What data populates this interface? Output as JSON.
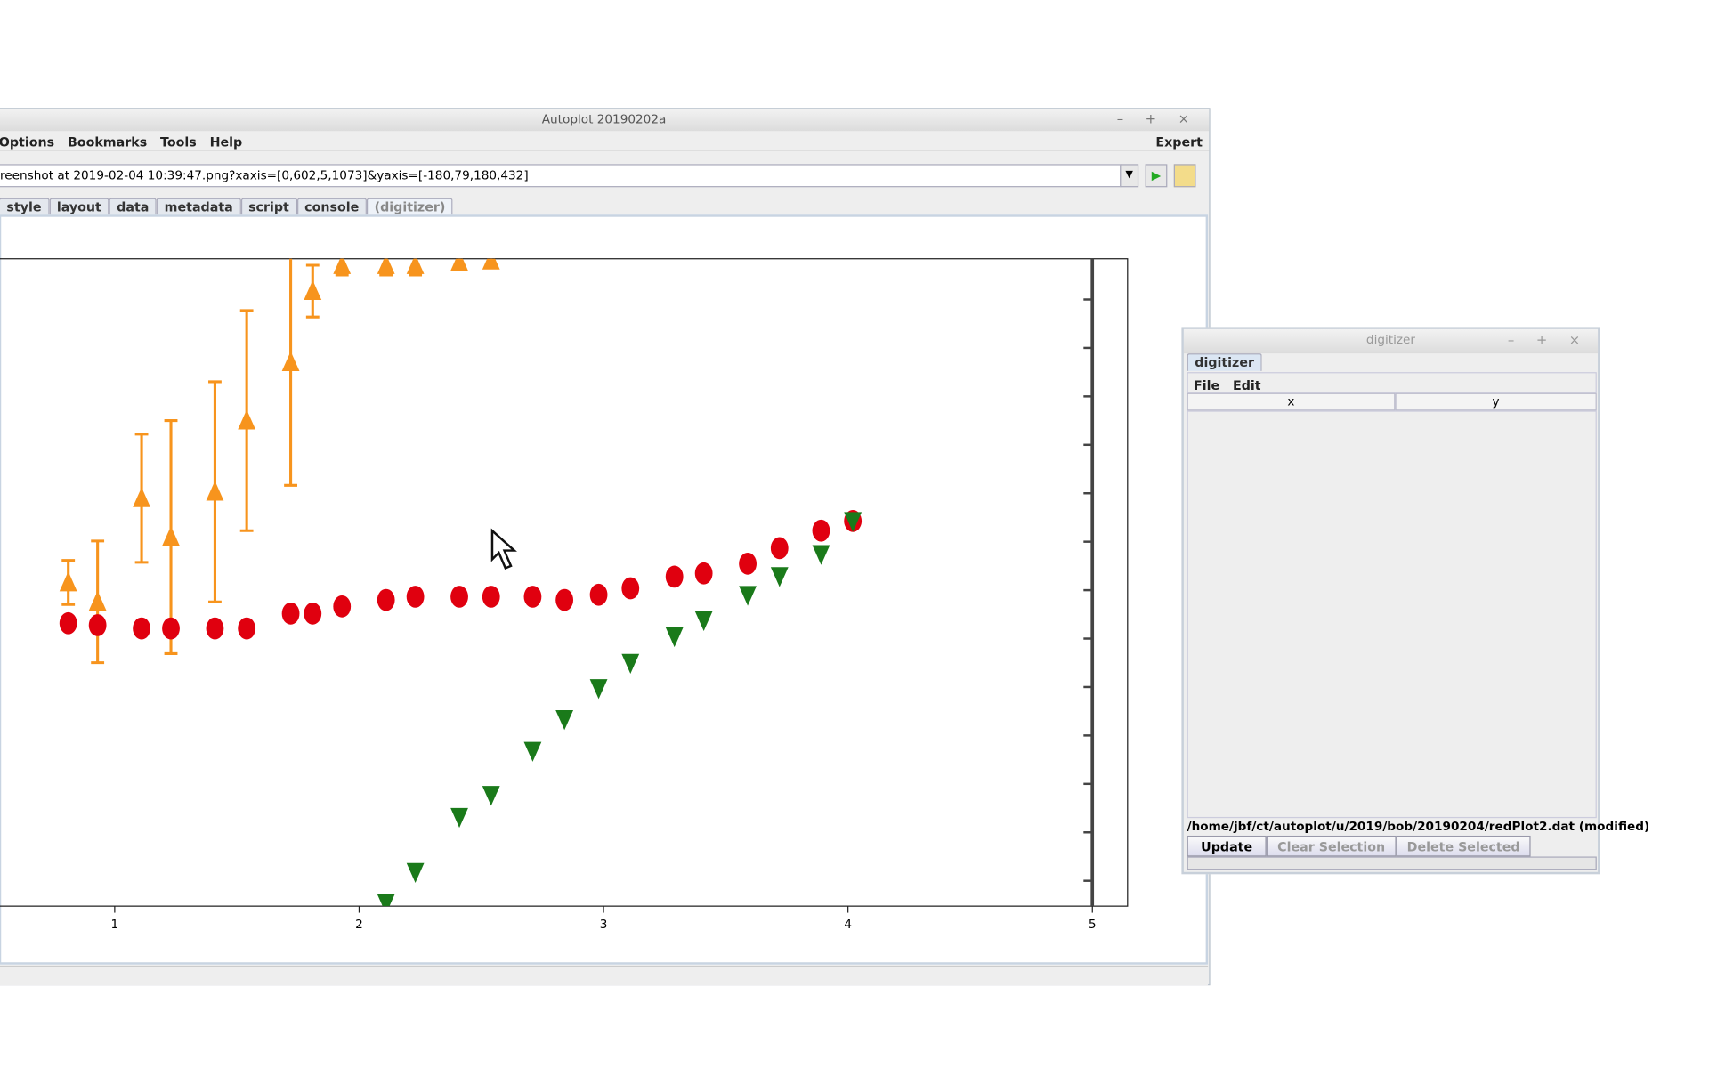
{
  "window": {
    "title": "Autoplot 20190202a",
    "menu": [
      "Options",
      "Bookmarks",
      "Tools",
      "Help"
    ],
    "expert": "Expert",
    "url": "reenshot at 2019-02-04 10:39:47.png?xaxis=[0,602,5,1073]&yaxis=[-180,79,180,432]",
    "tabs": [
      "style",
      "layout",
      "data",
      "metadata",
      "script",
      "console",
      "(digitizer)"
    ]
  },
  "chart_data": {
    "type": "scatter",
    "xlim": [
      -0.1,
      5.144
    ],
    "ylim": [
      0,
      1
    ],
    "xticks": [
      1,
      2,
      3,
      4,
      5
    ],
    "series": [
      {
        "color": "#f7941d",
        "marker": "triangle-up",
        "x": [
          0.81,
          0.93,
          1.11,
          1.23,
          1.41,
          1.54,
          1.72,
          1.81,
          1.93,
          2.11,
          2.23,
          2.41,
          2.54
        ],
        "values": [
          0.5,
          0.47,
          0.63,
          0.57,
          0.64,
          0.75,
          0.84,
          0.95,
          0.99,
          0.99,
          0.99,
          0.995,
          0.997
        ],
        "yerr": [
          0.034,
          0.094,
          0.099,
          0.18,
          0.17,
          0.17,
          0.19,
          0.04,
          0.015,
          0.015,
          0.015,
          0.01,
          0.01
        ]
      },
      {
        "color": "#e0000f",
        "marker": "ellipse",
        "x": [
          0.81,
          0.93,
          1.11,
          1.23,
          1.41,
          1.54,
          1.72,
          1.81,
          1.93,
          2.11,
          2.23,
          2.41,
          2.54,
          2.71,
          2.84,
          2.98,
          3.11,
          3.29,
          3.41,
          3.59,
          3.72,
          3.89,
          4.02
        ],
        "values": [
          0.437,
          0.434,
          0.429,
          0.429,
          0.429,
          0.429,
          0.452,
          0.452,
          0.463,
          0.473,
          0.478,
          0.478,
          0.478,
          0.478,
          0.473,
          0.481,
          0.491,
          0.509,
          0.514,
          0.529,
          0.553,
          0.58,
          0.595
        ]
      },
      {
        "color": "#1a7a1a",
        "marker": "triangle-down",
        "x": [
          2.11,
          2.23,
          2.41,
          2.54,
          2.71,
          2.84,
          2.98,
          3.11,
          3.29,
          3.41,
          3.59,
          3.72,
          3.89,
          4.02
        ],
        "values": [
          0.005,
          0.053,
          0.138,
          0.172,
          0.24,
          0.289,
          0.337,
          0.376,
          0.417,
          0.442,
          0.481,
          0.51,
          0.544,
          0.595
        ]
      }
    ]
  },
  "digitizer": {
    "title": "digitizer",
    "tab": "digitizer",
    "menu": [
      "File",
      "Edit"
    ],
    "columns": [
      "x",
      "y"
    ],
    "file": "/home/jbf/ct/autoplot/u/2019/bob/20190204/redPlot2.dat (modified)",
    "buttons": [
      "Update",
      "Clear Selection",
      "Delete Selected"
    ]
  }
}
